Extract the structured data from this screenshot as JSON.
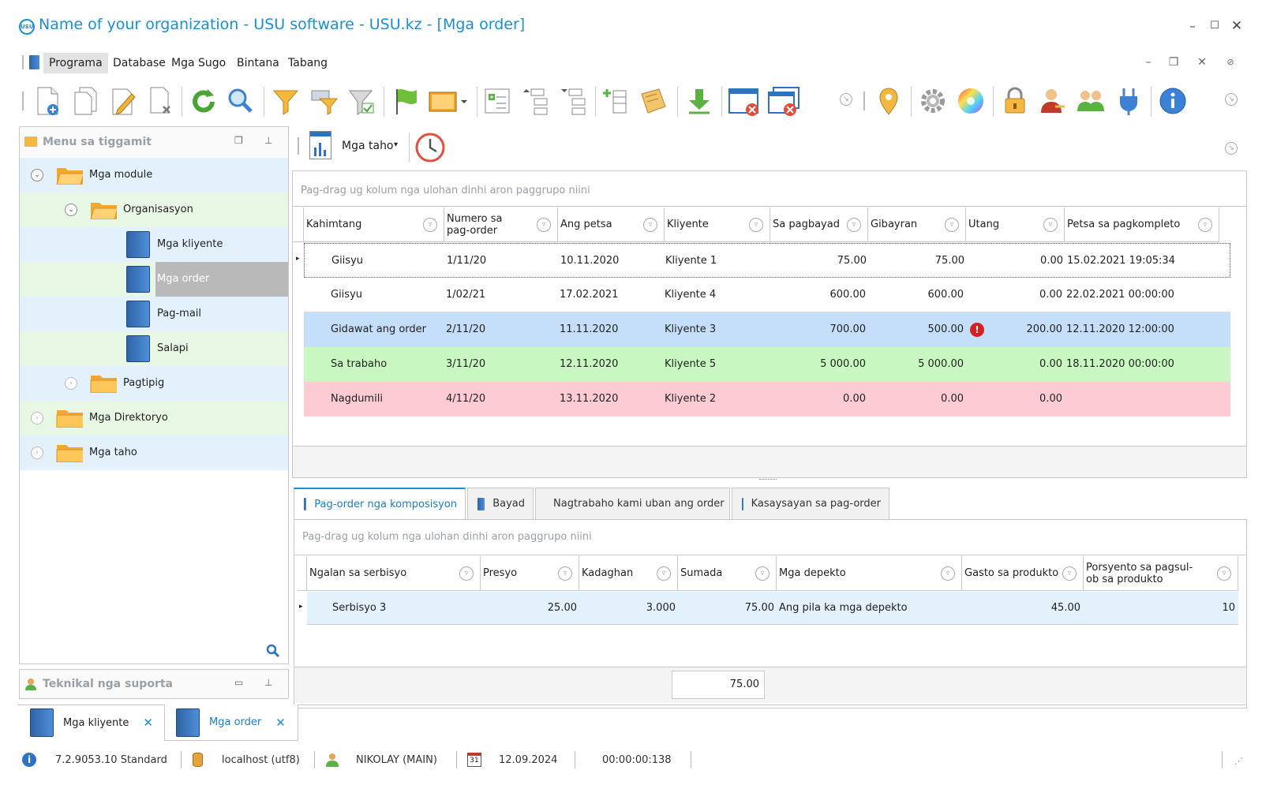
{
  "window": {
    "title": "Name of your organization - USU software - USU.kz - [Mga order]",
    "logo_text": "USU"
  },
  "menu": [
    "Programa",
    "Database",
    "Mga Sugo",
    "Bintana",
    "Tabang"
  ],
  "left_panel": {
    "title": "Menu sa tiggamit",
    "tree": [
      {
        "label": "Mga module",
        "level": 0,
        "type": "folder-open",
        "expanded": true
      },
      {
        "label": "Organisasyon",
        "level": 1,
        "type": "folder-open",
        "expanded": true
      },
      {
        "label": "Mga kliyente",
        "level": 2,
        "type": "book"
      },
      {
        "label": "Mga order",
        "level": 2,
        "type": "book",
        "selected": true
      },
      {
        "label": "Pag-mail",
        "level": 2,
        "type": "book"
      },
      {
        "label": "Salapi",
        "level": 2,
        "type": "book"
      },
      {
        "label": "Pagtipig",
        "level": 1,
        "type": "folder",
        "expanded": false
      },
      {
        "label": "Mga Direktoryo",
        "level": 0,
        "type": "folder",
        "expanded": false
      },
      {
        "label": "Mga taho",
        "level": 0,
        "type": "folder",
        "expanded": false
      }
    ]
  },
  "tech_panel": {
    "title": "Teknikal nga suporta"
  },
  "reports_button": "Mga taho",
  "grid1": {
    "group_hint": "Pag-drag ug kolum nga ulohan dinhi aron paggrupo niini",
    "columns": [
      "Kahimtang",
      "Numero sa pag-order",
      "Ang petsa",
      "Kliyente",
      "Sa pagbayad",
      "Gibayran",
      "Utang",
      "Petsa sa pagkompleto"
    ],
    "rows": [
      {
        "status": "Giisyu",
        "number": "1/11/20",
        "date": "10.11.2020",
        "client": "Kliyente 1",
        "to_pay": "75.00",
        "paid": "75.00",
        "debt": "0.00",
        "completed": "15.02.2021 19:05:34",
        "color": "#ffffff"
      },
      {
        "status": "Giisyu",
        "number": "1/02/21",
        "date": "17.02.2021",
        "client": "Kliyente 4",
        "to_pay": "600.00",
        "paid": "600.00",
        "debt": "0.00",
        "completed": "22.02.2021 00:00:00",
        "color": "#ffffff"
      },
      {
        "status": "Gidawat ang order",
        "number": "2/11/20",
        "date": "11.11.2020",
        "client": "Kliyente 3",
        "to_pay": "700.00",
        "paid": "500.00",
        "debt": "200.00",
        "completed": "12.11.2020 12:00:00",
        "color": "#c5defa",
        "warning": true
      },
      {
        "status": "Sa trabaho",
        "number": "3/11/20",
        "date": "12.11.2020",
        "client": "Kliyente 5",
        "to_pay": "5 000.00",
        "paid": "5 000.00",
        "debt": "0.00",
        "completed": "18.11.2020 00:00:00",
        "color": "#c9f7c1"
      },
      {
        "status": "Nagdumili",
        "number": "4/11/20",
        "date": "13.11.2020",
        "client": "Kliyente 2",
        "to_pay": "0.00",
        "paid": "0.00",
        "debt": "0.00",
        "completed": "",
        "color": "#fdccd2"
      }
    ]
  },
  "tabs": [
    "Pag-order nga komposisyon",
    "Bayad",
    "Nagtrabaho kami uban ang order",
    "Kasaysayan sa pag-order"
  ],
  "grid2": {
    "group_hint": "Pag-drag ug kolum nga ulohan dinhi aron paggrupo niini",
    "columns": [
      "Ngalan sa serbisyo",
      "Presyo",
      "Kadaghan",
      "Sumada",
      "Mga depekto",
      "Gasto sa produkto",
      "Porsyento sa pagsul-ob sa produkto"
    ],
    "rows": [
      {
        "name": "Serbisyo 3",
        "price": "25.00",
        "qty": "3.000",
        "sum": "75.00",
        "defects": "Ang pila ka mga depekto",
        "cost": "45.00",
        "percent": "10"
      }
    ],
    "total": "75.00"
  },
  "doc_tabs": [
    {
      "label": "Mga kliyente",
      "active": false
    },
    {
      "label": "Mga order",
      "active": true
    }
  ],
  "status": {
    "version": "7.2.9053.10 Standard",
    "db": "localhost (utf8)",
    "user": "NIKOLAY (MAIN)",
    "calendar_day": "31",
    "date": "12.09.2024",
    "timer": "00:00:00:138"
  }
}
